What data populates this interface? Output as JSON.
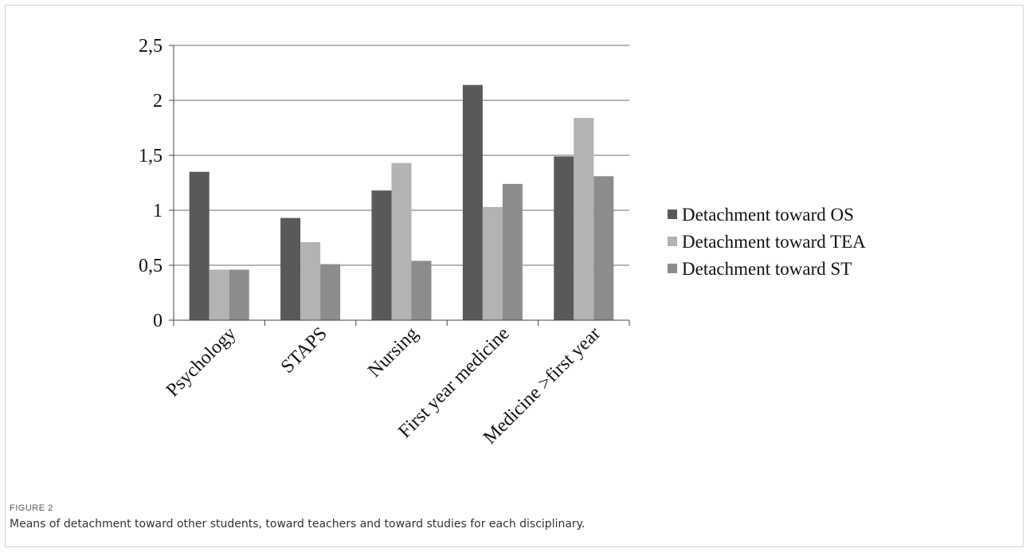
{
  "figure": {
    "label": "FIGURE 2",
    "caption": "Means of detachment toward other students, toward teachers and toward studies for each disciplinary."
  },
  "chart_data": {
    "type": "bar",
    "categories": [
      "Psychology",
      "STAPS",
      "Nursing",
      "First year  medicine",
      "Medicine >first year"
    ],
    "series": [
      {
        "name": "Detachment toward OS",
        "color": "#595959",
        "values": [
          1.35,
          0.93,
          1.18,
          2.14,
          1.49
        ]
      },
      {
        "name": "Detachment toward TEA",
        "color": "#b3b3b3",
        "values": [
          0.46,
          0.71,
          1.43,
          1.03,
          1.84
        ]
      },
      {
        "name": "Detachment toward ST",
        "color": "#8c8c8c",
        "values": [
          0.46,
          0.51,
          0.54,
          1.24,
          1.31
        ]
      }
    ],
    "yticks": [
      "0",
      "0,5",
      "1",
      "1,5",
      "2",
      "2,5"
    ],
    "ylim": [
      0,
      2.5
    ],
    "grid": true,
    "legend": "right"
  }
}
